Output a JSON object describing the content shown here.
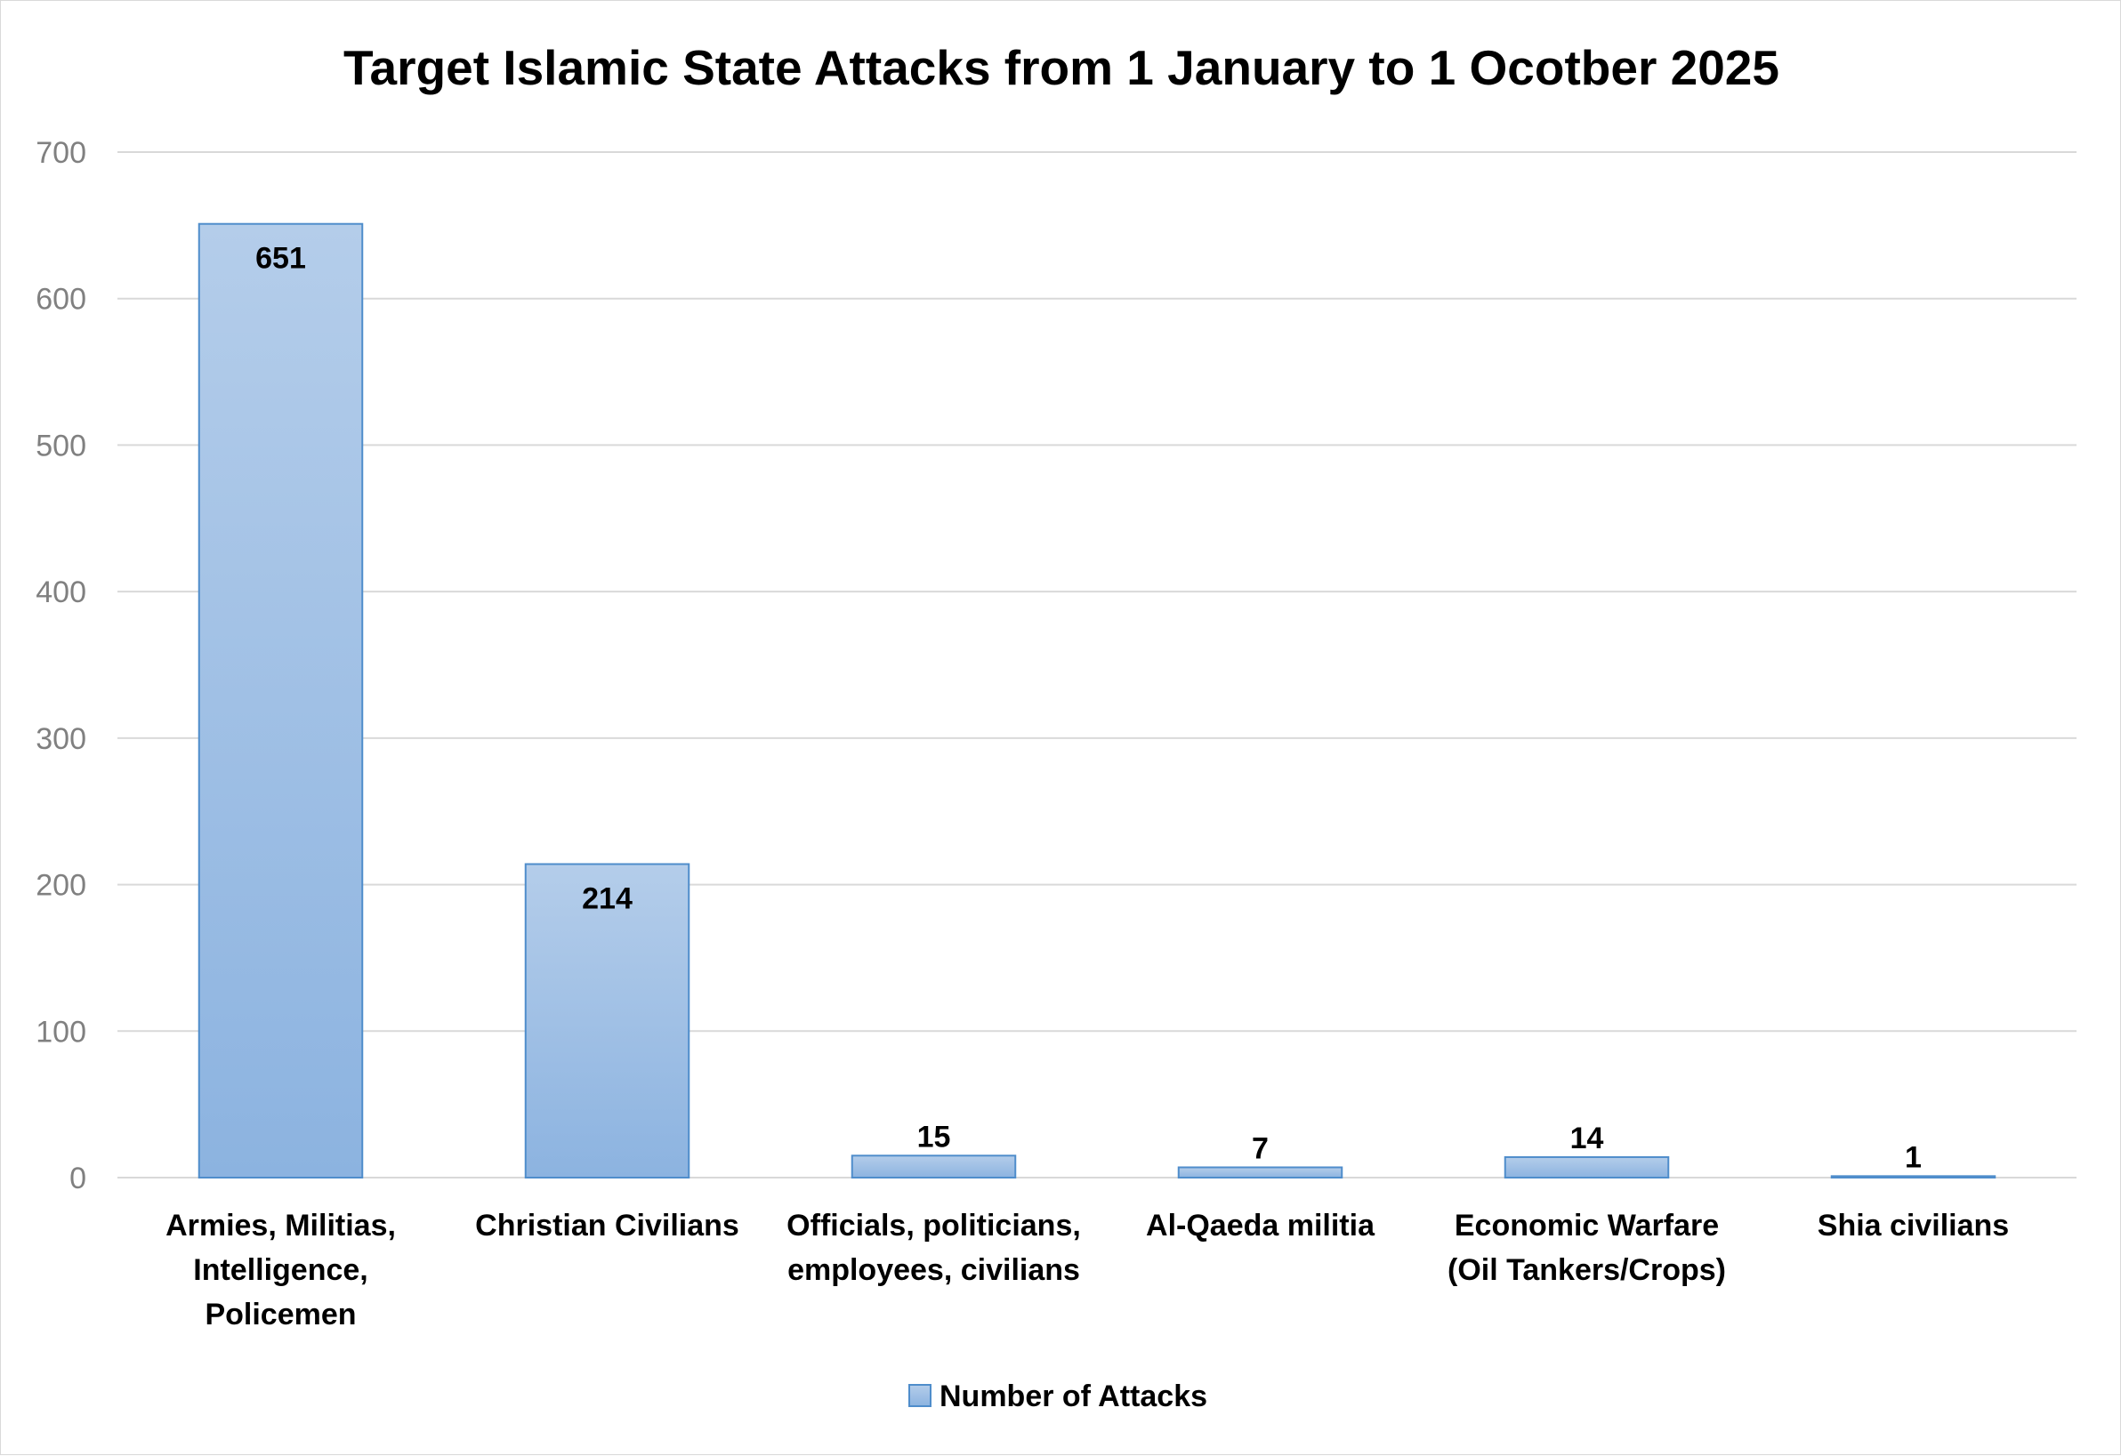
{
  "chart_data": {
    "type": "bar",
    "title": "Target Islamic State Attacks from 1 January to 1 Ocotber 2025",
    "xlabel": "",
    "ylabel": "",
    "categories": [
      [
        "Armies, Militias,",
        "Intelligence,",
        "Policemen"
      ],
      [
        "Christian Civilians"
      ],
      [
        "Officials, politicians,",
        "employees, civilians"
      ],
      [
        "Al-Qaeda militia"
      ],
      [
        "Economic Warfare",
        "(Oil Tankers/Crops)"
      ],
      [
        "Shia civilians"
      ]
    ],
    "series": [
      {
        "name": "Number of Attacks",
        "values": [
          651,
          214,
          15,
          7,
          14,
          1
        ],
        "color_top": "#b4cdea",
        "color_bottom": "#8cb3e0",
        "stroke": "#4f8dcb"
      }
    ],
    "data_labels": [
      "651",
      "214",
      "15",
      "7",
      "14",
      "1"
    ],
    "data_label_position": [
      "inside-end",
      "inside-end",
      "outside-end",
      "outside-end",
      "outside-end",
      "outside-end"
    ],
    "ylim": [
      0,
      700
    ],
    "yticks": [
      0,
      100,
      200,
      300,
      400,
      500,
      600,
      700
    ],
    "ytick_labels": [
      "0",
      "100",
      "200",
      "300",
      "400",
      "500",
      "600",
      "700"
    ],
    "grid": true,
    "gridline_color": "#d9d9d9",
    "legend_position": "bottom"
  }
}
